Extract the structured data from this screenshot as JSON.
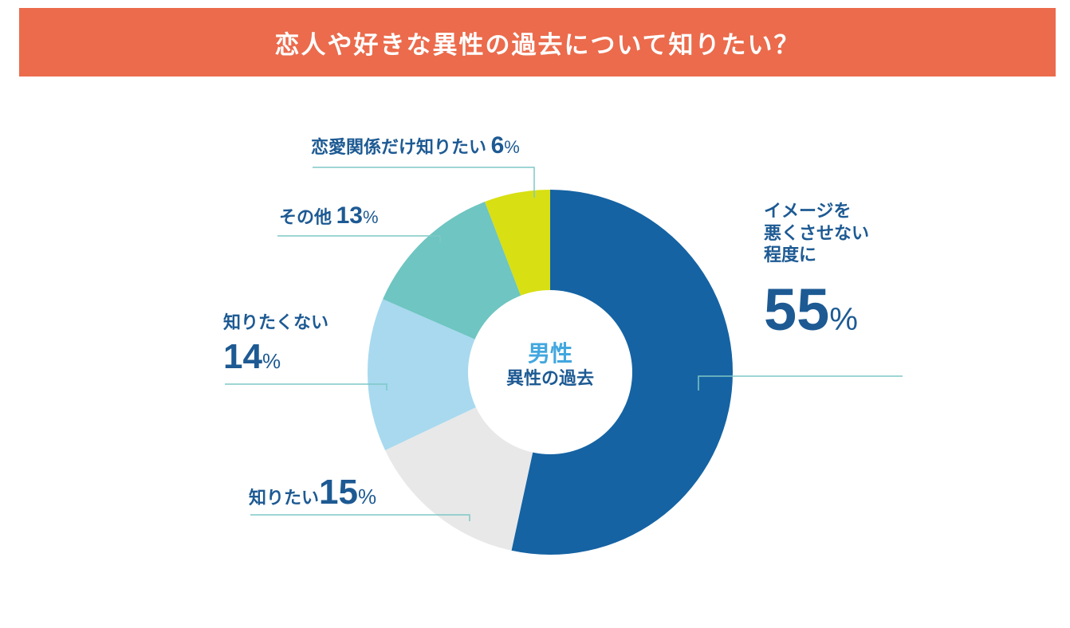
{
  "header": {
    "title": "恋人や好きな異性の過去について知りたい？"
  },
  "center_label": {
    "line1": "男性",
    "line2": "異性の過去"
  },
  "chart_data": {
    "type": "pie",
    "title": "恋人や好きな異性の過去について知りたい？",
    "center_text": [
      "男性",
      "異性の過去"
    ],
    "unit": "%",
    "slices": [
      {
        "label": "イメージを悪くさせない程度に",
        "value": 55,
        "color": "#1563a3",
        "label_lines": [
          "イメージを",
          "悪くさせない",
          "程度に"
        ]
      },
      {
        "label": "知りたい",
        "value": 15,
        "color": "#e8e8e8",
        "label_lines": [
          "知りたい"
        ]
      },
      {
        "label": "知りたくない",
        "value": 14,
        "color": "#a8d9ef",
        "label_lines": [
          "知りたくない"
        ]
      },
      {
        "label": "その他",
        "value": 13,
        "color": "#6ec5c1",
        "label_lines": [
          "その他"
        ]
      },
      {
        "label": "恋愛関係だけ知りたい",
        "value": 6,
        "color": "#d8df13",
        "label_lines": [
          "恋愛関係だけ知りたい"
        ]
      }
    ],
    "leader_line_color": "#7ec8c5"
  }
}
